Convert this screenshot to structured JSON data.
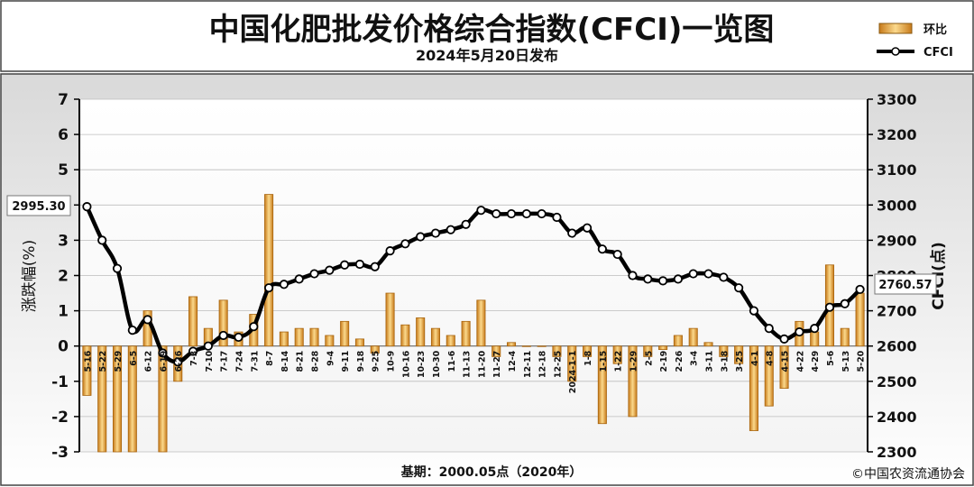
{
  "header": {
    "title": "中国化肥批发价格综合指数(CFCI)一览图",
    "subtitle": "2024年5月20日发布"
  },
  "legend": {
    "bar_label": "环比",
    "line_label": "CFCI"
  },
  "footer": {
    "base_note": "基期：2000.05点（2020年）",
    "copyright": "©中国农资流通协会"
  },
  "colors": {
    "bar_fill": "#f2b24a",
    "bar_edge": "#c77a1a",
    "line": "#000000",
    "panel_top": "#d9d9d9",
    "panel_bottom": "#ffffff"
  },
  "chart_data": {
    "type": "bar+line",
    "title": "中国化肥批发价格综合指数(CFCI)一览图",
    "ylabel_left": "涨跌幅(%)",
    "ylabel_right": "CFCI(点)",
    "ylim_left": [
      -3,
      7
    ],
    "ylim_right": [
      2300,
      3300
    ],
    "yticks_left": [
      -3,
      -2,
      -1,
      0,
      1,
      2,
      3,
      4,
      5,
      6,
      7
    ],
    "yticks_right": [
      2300,
      2400,
      2500,
      2600,
      2700,
      2800,
      2900,
      3000,
      3100,
      3200,
      3300
    ],
    "callouts": {
      "first": "2995.30",
      "last": "2760.57"
    },
    "categories": [
      "5-16",
      "5-22",
      "5-29",
      "6-5",
      "6-12",
      "6-19",
      "6-26",
      "7-3",
      "7-10",
      "7-17",
      "7-24",
      "7-31",
      "8-7",
      "8-14",
      "8-21",
      "8-28",
      "9-4",
      "9-11",
      "9-18",
      "9-25",
      "10-9",
      "10-16",
      "10-23",
      "10-30",
      "11-6",
      "11-13",
      "11-20",
      "11-27",
      "12-4",
      "12-11",
      "12-18",
      "12-25",
      "2024-1-1",
      "1-8",
      "1-15",
      "1-22",
      "1-29",
      "2-5",
      "2-19",
      "2-26",
      "3-4",
      "3-11",
      "3-18",
      "3-25",
      "4-1",
      "4-8",
      "4-15",
      "4-22",
      "4-29",
      "5-6",
      "5-13",
      "5-20"
    ],
    "series": [
      {
        "name": "环比",
        "type": "bar",
        "values": [
          -1.4,
          -3.0,
          -3.0,
          -3.0,
          1.0,
          -3.0,
          -1.0,
          1.4,
          0.5,
          1.3,
          0.4,
          0.9,
          4.3,
          0.4,
          0.5,
          0.5,
          0.3,
          0.7,
          0.2,
          -0.2,
          1.5,
          0.6,
          0.8,
          0.5,
          0.3,
          0.7,
          1.3,
          -0.3,
          0.1,
          0.0,
          0.0,
          -0.3,
          -1.0,
          -0.3,
          -2.2,
          -0.5,
          -2.0,
          -0.3,
          -0.1,
          0.3,
          0.5,
          0.1,
          -0.3,
          -0.5,
          -2.4,
          -1.7,
          -1.2,
          0.7,
          0.4,
          2.3,
          0.5,
          1.5
        ]
      },
      {
        "name": "CFCI",
        "type": "line",
        "values": [
          2995.3,
          2900,
          2820,
          2645,
          2675,
          2580,
          2555,
          2585,
          2600,
          2630,
          2625,
          2655,
          2765,
          2775,
          2790,
          2805,
          2815,
          2830,
          2832,
          2825,
          2870,
          2890,
          2910,
          2920,
          2930,
          2945,
          2985,
          2975,
          2975,
          2975,
          2975,
          2965,
          2920,
          2935,
          2875,
          2860,
          2800,
          2790,
          2785,
          2790,
          2805,
          2805,
          2795,
          2765,
          2700,
          2650,
          2620,
          2640,
          2650,
          2710,
          2720,
          2760.57
        ]
      }
    ]
  }
}
